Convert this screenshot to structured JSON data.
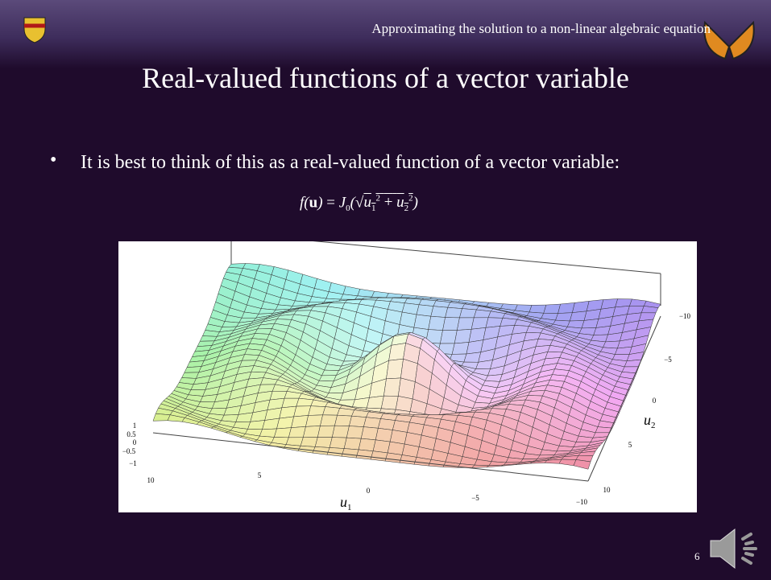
{
  "header": {
    "running_title": "Approximating the solution to a non-linear algebraic equation"
  },
  "slide": {
    "title": "Real-valued functions of a vector variable",
    "bullets": [
      "It is best to think of this as a real-valued function of a vector variable:"
    ],
    "formula": {
      "f": "f",
      "u": "u",
      "equals": "=",
      "J": "J",
      "J_sub": "0",
      "u1": "u",
      "u1_sub": "1",
      "u1_sup": "2",
      "plus": "+",
      "u2": "u",
      "u2_sub": "2",
      "u2_sup": "2"
    },
    "figure": {
      "z_ticks": [
        "1",
        "0.5",
        "0",
        "−0.5",
        "−1"
      ],
      "u1_ticks": [
        "10",
        "5",
        "0",
        "−5",
        "−10"
      ],
      "u1_label": {
        "base": "u",
        "sub": "1"
      },
      "u2_ticks": [
        "−10",
        "−5",
        "0",
        "5",
        "10"
      ],
      "u2_label": {
        "base": "u",
        "sub": "2"
      }
    },
    "page_number": "6"
  }
}
